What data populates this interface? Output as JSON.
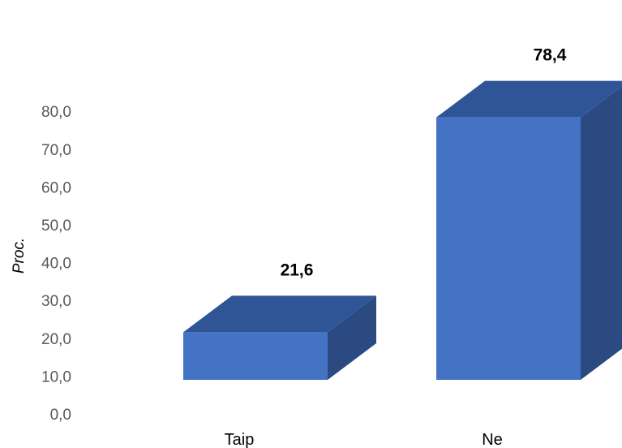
{
  "chart_data": {
    "type": "bar",
    "style": "3d-column",
    "categories": [
      "Taip",
      "Ne"
    ],
    "values": [
      21.6,
      78.4
    ],
    "data_labels": [
      "21,6",
      "78,4"
    ],
    "title": "",
    "xlabel": "",
    "ylabel": "Proc.",
    "ylim": [
      0,
      80
    ],
    "yticks": [
      "0,0",
      "10,0",
      "20,0",
      "30,0",
      "40,0",
      "50,0",
      "60,0",
      "70,0",
      "80,0"
    ],
    "grid": false,
    "legend": "none",
    "colors": {
      "front": "#4472C4",
      "top": "#2F5597",
      "side": "#2B4A82"
    }
  }
}
